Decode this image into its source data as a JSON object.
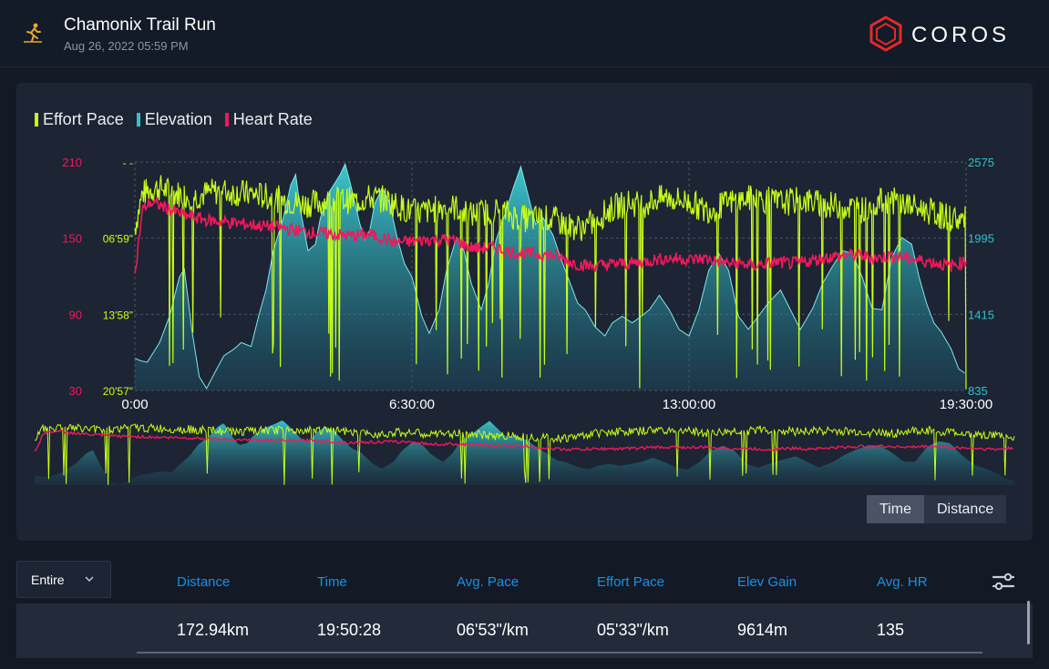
{
  "header": {
    "title": "Chamonix Trail Run",
    "subtitle": "Aug 26, 2022 05:59 PM",
    "activity_icon": "trail-run-icon",
    "brand": "COROS"
  },
  "legend": [
    {
      "label": "Effort Pace",
      "color": "#c7ff1a"
    },
    {
      "label": "Elevation",
      "color": "#2ec4cc"
    },
    {
      "label": "Heart Rate",
      "color": "#f0195c"
    }
  ],
  "chart_data": {
    "type": "line",
    "x_ticks": [
      "0:00",
      "6:30:00",
      "13:00:00",
      "19:30:00"
    ],
    "hr_axis": {
      "ticks": [
        "210",
        "150",
        "90",
        "30"
      ],
      "range": [
        30,
        210
      ]
    },
    "pace_axis": {
      "ticks": [
        "- -",
        "06'59\"",
        "13'58\"",
        "20'57\""
      ]
    },
    "elev_axis": {
      "ticks": [
        "2575",
        "1995",
        "1415",
        "835"
      ],
      "range": [
        835,
        2575
      ]
    },
    "grid": true,
    "series": [
      {
        "name": "Elevation",
        "color": "#2ec4cc",
        "points": [
          [
            0,
            1080
          ],
          [
            0.25,
            1060
          ],
          [
            0.5,
            1050
          ],
          [
            1,
            1200
          ],
          [
            1.4,
            1400
          ],
          [
            1.8,
            1700
          ],
          [
            2,
            1760
          ],
          [
            2.3,
            1300
          ],
          [
            2.6,
            940
          ],
          [
            2.9,
            850
          ],
          [
            3.2,
            960
          ],
          [
            3.6,
            1100
          ],
          [
            4,
            1150
          ],
          [
            4.3,
            1200
          ],
          [
            4.7,
            1170
          ],
          [
            5,
            1400
          ],
          [
            5.3,
            1600
          ],
          [
            5.6,
            1900
          ],
          [
            6.0,
            2150
          ],
          [
            6.3,
            2400
          ],
          [
            6.5,
            2480
          ],
          [
            6.7,
            2200
          ],
          [
            7,
            1900
          ],
          [
            7.3,
            1950
          ],
          [
            7.5,
            2150
          ],
          [
            7.9,
            2360
          ],
          [
            8.1,
            2420
          ],
          [
            8.3,
            2480
          ],
          [
            8.5,
            2560
          ],
          [
            8.7,
            2420
          ],
          [
            8.9,
            2260
          ],
          [
            9.1,
            2100
          ],
          [
            9.3,
            1980
          ],
          [
            9.5,
            2060
          ],
          [
            9.7,
            2260
          ],
          [
            10,
            2380
          ],
          [
            10.3,
            2260
          ],
          [
            10.6,
            2000
          ],
          [
            10.9,
            1800
          ],
          [
            11.2,
            1700
          ],
          [
            11.6,
            1400
          ],
          [
            11.9,
            1270
          ],
          [
            12.3,
            1450
          ],
          [
            12.6,
            1750
          ],
          [
            13,
            2000
          ],
          [
            13.3,
            1900
          ],
          [
            13.6,
            1650
          ],
          [
            14,
            1450
          ],
          [
            14.3,
            1650
          ],
          [
            14.6,
            1980
          ],
          [
            15,
            2200
          ],
          [
            15.3,
            2380
          ],
          [
            15.6,
            2540
          ],
          [
            15.9,
            2320
          ],
          [
            16.2,
            2100
          ],
          [
            16.5,
            2150
          ],
          [
            16.9,
            2020
          ],
          [
            17.2,
            1850
          ],
          [
            17.6,
            1650
          ],
          [
            17.9,
            1500
          ],
          [
            18.2,
            1450
          ],
          [
            18.6,
            1320
          ],
          [
            19,
            1250
          ],
          [
            19.3,
            1350
          ],
          [
            19.7,
            1400
          ],
          [
            20.1,
            1350
          ],
          [
            20.4,
            1390
          ],
          [
            20.8,
            1450
          ],
          [
            21.2,
            1560
          ],
          [
            21.6,
            1450
          ],
          [
            22,
            1300
          ],
          [
            22.4,
            1250
          ],
          [
            22.8,
            1450
          ],
          [
            23.2,
            1750
          ],
          [
            23.6,
            1880
          ],
          [
            24,
            1750
          ],
          [
            24.4,
            1400
          ],
          [
            24.8,
            1300
          ],
          [
            25.2,
            1400
          ],
          [
            25.6,
            1500
          ],
          [
            26.1,
            1600
          ],
          [
            26.5,
            1450
          ],
          [
            26.9,
            1300
          ],
          [
            27.4,
            1460
          ],
          [
            27.8,
            1650
          ],
          [
            28.2,
            1780
          ],
          [
            28.6,
            1900
          ],
          [
            29,
            1880
          ],
          [
            29.4,
            1700
          ],
          [
            29.8,
            1460
          ],
          [
            30.2,
            1450
          ],
          [
            30.6,
            1850
          ],
          [
            31,
            2000
          ],
          [
            31.4,
            1950
          ],
          [
            31.7,
            1700
          ],
          [
            32,
            1500
          ],
          [
            32.3,
            1350
          ],
          [
            32.6,
            1280
          ],
          [
            33,
            1150
          ],
          [
            33.3,
            1000
          ],
          [
            33.6,
            960
          ]
        ]
      },
      {
        "name": "Heart Rate",
        "color": "#f0195c",
        "points": [
          [
            0,
            120
          ],
          [
            0.3,
            172
          ],
          [
            0.6,
            178
          ],
          [
            1,
            176
          ],
          [
            1.5,
            172
          ],
          [
            2,
            168
          ],
          [
            2.5,
            166
          ],
          [
            3,
            164
          ],
          [
            3.5,
            163
          ],
          [
            4,
            162
          ],
          [
            4.5,
            161
          ],
          [
            5,
            160
          ],
          [
            5.5,
            159
          ],
          [
            6,
            158
          ],
          [
            6.5,
            156
          ],
          [
            7,
            155
          ],
          [
            7.5,
            154
          ],
          [
            8,
            153
          ],
          [
            8.5,
            152
          ],
          [
            9,
            152
          ],
          [
            9.5,
            153
          ],
          [
            10,
            150
          ],
          [
            10.5,
            147
          ],
          [
            11,
            147
          ],
          [
            11.5,
            148
          ],
          [
            12,
            149
          ],
          [
            12.5,
            149
          ],
          [
            13,
            148
          ],
          [
            13.5,
            143
          ],
          [
            14,
            142
          ],
          [
            14.5,
            143
          ],
          [
            15,
            140
          ],
          [
            15.5,
            138
          ],
          [
            16,
            138
          ],
          [
            16.5,
            137
          ],
          [
            17,
            136
          ],
          [
            17.5,
            132
          ],
          [
            18,
            129
          ],
          [
            18.5,
            128
          ],
          [
            19,
            129
          ],
          [
            19.5,
            130
          ],
          [
            20,
            130
          ],
          [
            20.5,
            131
          ],
          [
            21,
            133
          ],
          [
            21.5,
            134
          ],
          [
            22,
            134
          ],
          [
            22.5,
            133
          ],
          [
            23,
            134
          ],
          [
            23.5,
            132
          ],
          [
            24,
            130
          ],
          [
            24.5,
            130
          ],
          [
            25,
            128
          ],
          [
            25.5,
            130
          ],
          [
            26,
            131
          ],
          [
            26.5,
            130
          ],
          [
            27,
            131
          ],
          [
            27.5,
            133
          ],
          [
            28,
            135
          ],
          [
            28.5,
            136
          ],
          [
            29,
            137
          ],
          [
            29.5,
            136
          ],
          [
            30,
            134
          ],
          [
            30.5,
            136
          ],
          [
            31,
            135
          ],
          [
            31.5,
            133
          ],
          [
            32,
            132
          ],
          [
            32.5,
            130
          ],
          [
            33,
            128
          ],
          [
            33.6,
            132
          ]
        ]
      },
      {
        "name": "Effort Pace",
        "color": "#c7ff1a",
        "points": [
          [
            0,
            158
          ],
          [
            0.3,
            185
          ],
          [
            0.6,
            188
          ],
          [
            1,
            190
          ],
          [
            1.5,
            186
          ],
          [
            2,
            184
          ],
          [
            2.5,
            183
          ],
          [
            3,
            186
          ],
          [
            3.5,
            187
          ],
          [
            4,
            186
          ],
          [
            4.5,
            185
          ],
          [
            5,
            184
          ],
          [
            5.5,
            182
          ],
          [
            6,
            180
          ],
          [
            6.5,
            178
          ],
          [
            7,
            177
          ],
          [
            7.5,
            178
          ],
          [
            8,
            180
          ],
          [
            8.5,
            180
          ],
          [
            9,
            179
          ],
          [
            9.5,
            182
          ],
          [
            10,
            181
          ],
          [
            10.5,
            177
          ],
          [
            11,
            172
          ],
          [
            11.5,
            170
          ],
          [
            12,
            172
          ],
          [
            12.5,
            175
          ],
          [
            13,
            174
          ],
          [
            13.5,
            168
          ],
          [
            14,
            170
          ],
          [
            14.5,
            172
          ],
          [
            15,
            170
          ],
          [
            15.5,
            166
          ],
          [
            16,
            165
          ],
          [
            16.5,
            166
          ],
          [
            17,
            164
          ],
          [
            17.5,
            160
          ],
          [
            18,
            158
          ],
          [
            18.5,
            162
          ],
          [
            19,
            170
          ],
          [
            19.5,
            175
          ],
          [
            20,
            178
          ],
          [
            20.5,
            176
          ],
          [
            21,
            180
          ],
          [
            21.5,
            182
          ],
          [
            22,
            180
          ],
          [
            22.5,
            178
          ],
          [
            23,
            172
          ],
          [
            23.5,
            174
          ],
          [
            24,
            178
          ],
          [
            24.5,
            180
          ],
          [
            25,
            182
          ],
          [
            25.5,
            180
          ],
          [
            26,
            178
          ],
          [
            26.5,
            179
          ],
          [
            27,
            180
          ],
          [
            27.5,
            178
          ],
          [
            28,
            176
          ],
          [
            28.5,
            175
          ],
          [
            29,
            174
          ],
          [
            29.5,
            172
          ],
          [
            30,
            178
          ],
          [
            30.5,
            180
          ],
          [
            31,
            178
          ],
          [
            31.5,
            174
          ],
          [
            32,
            172
          ],
          [
            32.5,
            168
          ],
          [
            33,
            166
          ],
          [
            33.6,
            164
          ]
        ]
      }
    ]
  },
  "range_toggle": {
    "time": "Time",
    "distance": "Distance",
    "active": "Time"
  },
  "stats": {
    "range": "Entire",
    "columns": [
      {
        "label": "Distance",
        "value": "172.94km"
      },
      {
        "label": "Time",
        "value": "19:50:28"
      },
      {
        "label": "Avg. Pace",
        "value": "06'53\"/km"
      },
      {
        "label": "Effort Pace",
        "value": "05'33\"/km"
      },
      {
        "label": "Elev Gain",
        "value": "9614m"
      },
      {
        "label": "Avg. HR",
        "value": "135"
      }
    ]
  }
}
